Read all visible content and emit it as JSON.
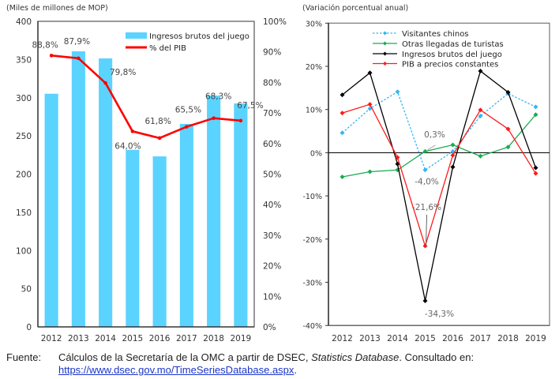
{
  "chart_data": [
    {
      "type": "bar+line",
      "title": "",
      "ylabel": "(Miles de millones de MOP)",
      "y2label": "",
      "categories": [
        "2012",
        "2013",
        "2014",
        "2015",
        "2016",
        "2017",
        "2018",
        "2019"
      ],
      "ylim": [
        0,
        400
      ],
      "yticks": [
        0,
        50,
        100,
        150,
        200,
        250,
        300,
        350,
        400
      ],
      "y2lim": [
        0,
        100
      ],
      "y2ticks": [
        "0%",
        "10%",
        "20%",
        "30%",
        "40%",
        "50%",
        "60%",
        "70%",
        "80%",
        "90%",
        "100%"
      ],
      "series": [
        {
          "name": "Ingresos brutos del juego",
          "type": "bar",
          "axis": "left",
          "color": "#5bd3ff",
          "values": [
            305.2,
            360.7,
            351.5,
            231.8,
            223.2,
            265.7,
            302.8,
            292.5
          ]
        },
        {
          "name": "% del PIB",
          "type": "line",
          "axis": "right",
          "color": "#ff0000",
          "values": [
            88.8,
            87.9,
            79.8,
            64.0,
            61.8,
            65.5,
            68.3,
            67.5
          ],
          "labels": [
            "88,8%",
            "87,9%",
            "79,8%",
            "64,0%",
            "61,8%",
            "65,5%",
            "68,3%",
            "67,5%"
          ]
        }
      ],
      "legend": "top-right",
      "grid": false
    },
    {
      "type": "line",
      "title": "",
      "ylabel": "(Variación porcentual anual)",
      "categories": [
        "2012",
        "2013",
        "2014",
        "2015",
        "2016",
        "2017",
        "2018",
        "2019"
      ],
      "ylim": [
        -40,
        30
      ],
      "yticks": [
        "-40%",
        "-30%",
        "-20%",
        "-10%",
        "0%",
        "10%",
        "20%",
        "30%"
      ],
      "series": [
        {
          "name": "Visitantes chinos",
          "color": "#33b5f5",
          "dashed": true,
          "values": [
            4.6,
            10.2,
            14.1,
            -4.0,
            0.3,
            8.5,
            13.7,
            10.6
          ]
        },
        {
          "name": "Otras llegadas de turistas",
          "color": "#1aaa50",
          "dashed": false,
          "values": [
            -5.6,
            -4.4,
            -4.0,
            0.3,
            1.8,
            -0.8,
            1.3,
            8.8
          ]
        },
        {
          "name": "Ingresos brutos del juego",
          "color": "#000000",
          "dashed": false,
          "values": [
            13.4,
            18.5,
            -2.6,
            -34.3,
            -3.3,
            18.9,
            14.0,
            -3.5
          ]
        },
        {
          "name": "PIB a precios constantes",
          "color": "#ff1a1a",
          "dashed": false,
          "values": [
            9.2,
            11.2,
            -1.1,
            -21.6,
            -0.6,
            9.9,
            5.5,
            -4.8
          ]
        }
      ],
      "annotations": [
        {
          "text": "0,3%",
          "series": "Otras llegadas de turistas",
          "category": "2015"
        },
        {
          "text": "-4,0%",
          "series": "Visitantes chinos",
          "category": "2015"
        },
        {
          "text": "-21,6%",
          "series": "PIB a precios constantes",
          "category": "2015"
        },
        {
          "text": "-34,3%",
          "series": "Ingresos brutos del juego",
          "category": "2015"
        }
      ],
      "legend": "top-center",
      "grid": false
    }
  ],
  "footer": {
    "source_label": "Fuente:",
    "source_text_1": "Cálculos de la Secretaría de la OMC a partir de DSEC, ",
    "source_italic": "Statistics Database",
    "source_text_2": ". Consultado en:",
    "source_link": "https://www.dsec.gov.mo/TimeSeriesDatabase.aspx",
    "source_end": "."
  }
}
